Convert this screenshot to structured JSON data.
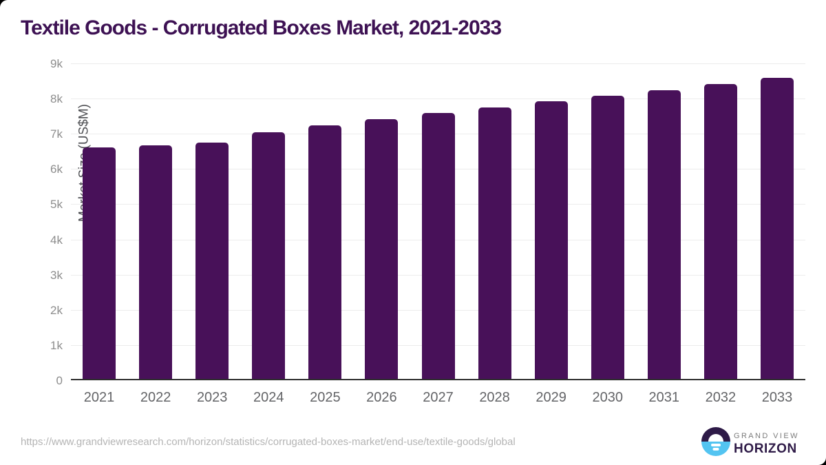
{
  "chart_data": {
    "type": "bar",
    "title": "Textile Goods - Corrugated Boxes Market, 2021-2033",
    "xlabel": "",
    "ylabel": "Market Size (US$M)",
    "categories": [
      "2021",
      "2022",
      "2023",
      "2024",
      "2025",
      "2026",
      "2027",
      "2028",
      "2029",
      "2030",
      "2031",
      "2032",
      "2033"
    ],
    "values": [
      6600,
      6670,
      6750,
      7040,
      7230,
      7410,
      7590,
      7750,
      7910,
      8070,
      8240,
      8420,
      8580
    ],
    "ylim": [
      0,
      9000
    ],
    "ytick_step": 1000,
    "ytick_labels": [
      "0",
      "1k",
      "2k",
      "3k",
      "4k",
      "5k",
      "6k",
      "7k",
      "8k",
      "9k"
    ],
    "grid": true,
    "legend": false,
    "colors": {
      "bar": "#481159",
      "title": "#3d1153",
      "axis_line": "#2d2d2d",
      "gridline": "#ececec",
      "tick_label": "#8c8c8c",
      "x_label": "#636467",
      "axis_label": "#4d4e52",
      "source_url": "#b4b4b4",
      "logo_purple": "#2e1a47",
      "logo_blue": "#53c4f1",
      "logo_gray": "#7b7b7b"
    }
  },
  "footer": {
    "source_url": "https://www.grandviewresearch.com/horizon/statistics/corrugated-boxes-market/end-use/textile-goods/global",
    "logo_line1": "GRAND VIEW",
    "logo_line2": "HORIZON"
  }
}
